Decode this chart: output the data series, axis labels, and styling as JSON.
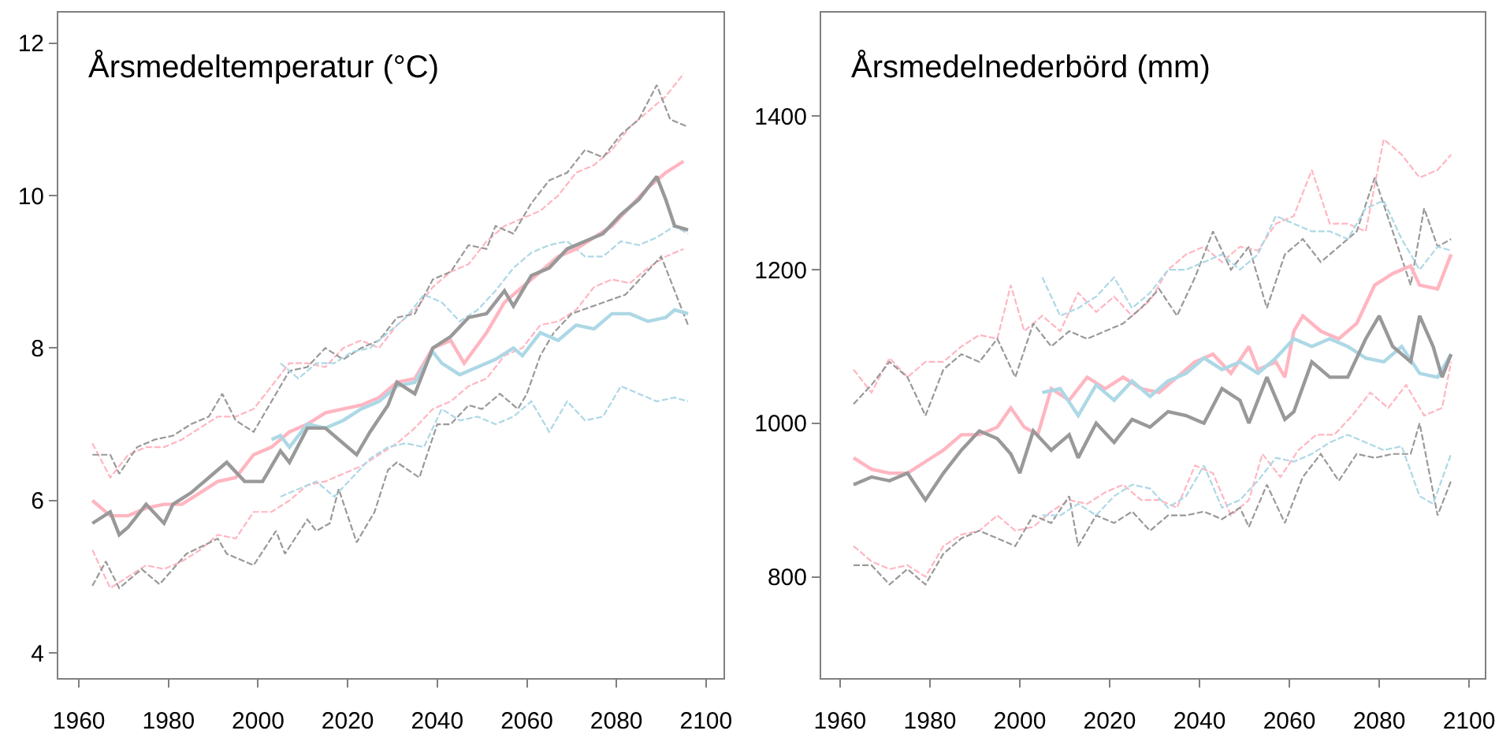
{
  "chart_data": [
    {
      "type": "line",
      "title": "Årsmedeltemperatur (°C)",
      "xlim": [
        1955.4,
        2103.9
      ],
      "ylim": [
        3.67,
        12.4
      ],
      "xticks": [
        1960,
        1980,
        2000,
        2020,
        2040,
        2060,
        2080,
        2100
      ],
      "yticks": [
        4,
        6,
        8,
        10,
        12
      ],
      "marker": "none",
      "series": [
        {
          "color": "#ffb6c1",
          "line_style": "dashed",
          "x": [
            1963,
            1967,
            1971,
            1975,
            1979,
            1983,
            1987,
            1991,
            1995,
            1999,
            2003,
            2007,
            2011,
            2015,
            2019,
            2023,
            2027,
            2031,
            2035,
            2039,
            2043,
            2047,
            2051,
            2055,
            2059,
            2063,
            2067,
            2071,
            2075,
            2079,
            2083,
            2087,
            2091,
            2095
          ],
          "values": [
            6.75,
            6.3,
            6.6,
            6.7,
            6.7,
            6.8,
            6.95,
            7.1,
            7.1,
            7.2,
            7.5,
            7.8,
            7.8,
            7.75,
            8.0,
            8.1,
            8.0,
            8.3,
            8.5,
            8.8,
            9.0,
            9.1,
            9.4,
            9.6,
            9.7,
            9.8,
            10.0,
            10.3,
            10.4,
            10.6,
            10.9,
            11.1,
            11.3,
            11.6
          ]
        },
        {
          "color": "#999999",
          "line_style": "dashed",
          "x": [
            1963,
            1967,
            1969,
            1973,
            1977,
            1981,
            1985,
            1989,
            1992,
            1995,
            1999,
            2003,
            2007,
            2011,
            2015,
            2019,
            2023,
            2027,
            2031,
            2035,
            2039,
            2043,
            2047,
            2051,
            2053,
            2057,
            2061,
            2065,
            2069,
            2073,
            2077,
            2081,
            2085,
            2089,
            2092,
            2096
          ],
          "values": [
            6.6,
            6.6,
            6.35,
            6.7,
            6.8,
            6.85,
            7.0,
            7.1,
            7.4,
            7.05,
            6.9,
            7.3,
            7.7,
            7.75,
            8.0,
            7.85,
            8.0,
            8.1,
            8.4,
            8.45,
            8.9,
            9.0,
            9.35,
            9.3,
            9.6,
            9.5,
            9.9,
            10.2,
            10.3,
            10.6,
            10.5,
            10.8,
            11.0,
            11.45,
            11.0,
            10.9
          ]
        },
        {
          "color": "#add8e6",
          "line_style": "dashed",
          "x": [
            2005,
            2009,
            2013,
            2017,
            2021,
            2025,
            2029,
            2033,
            2037,
            2041,
            2045,
            2049,
            2053,
            2057,
            2061,
            2065,
            2069,
            2073,
            2077,
            2081,
            2085,
            2089,
            2093,
            2096
          ],
          "values": [
            7.8,
            7.6,
            7.8,
            7.8,
            7.95,
            8.0,
            8.2,
            8.4,
            8.7,
            8.6,
            8.35,
            8.5,
            8.75,
            9.05,
            9.25,
            9.35,
            9.4,
            9.2,
            9.2,
            9.4,
            9.35,
            9.45,
            9.6,
            9.5
          ]
        },
        {
          "color": "#ffb6c1",
          "line_style": "dashed",
          "x": [
            1963,
            1967,
            1971,
            1975,
            1979,
            1983,
            1987,
            1991,
            1995,
            1999,
            2003,
            2007,
            2011,
            2015,
            2019,
            2023,
            2027,
            2031,
            2035,
            2039,
            2043,
            2047,
            2051,
            2055,
            2059,
            2063,
            2067,
            2071,
            2075,
            2079,
            2083,
            2087,
            2091,
            2095
          ],
          "values": [
            5.35,
            4.85,
            5.0,
            5.15,
            5.1,
            5.2,
            5.35,
            5.55,
            5.5,
            5.85,
            5.85,
            6.0,
            6.2,
            6.25,
            6.35,
            6.45,
            6.6,
            6.75,
            6.95,
            7.2,
            7.3,
            7.5,
            7.6,
            7.9,
            8.0,
            8.3,
            8.35,
            8.5,
            8.8,
            8.9,
            8.85,
            9.05,
            9.2,
            9.3
          ]
        },
        {
          "color": "#999999",
          "line_style": "dashed",
          "x": [
            1963,
            1966,
            1969,
            1974,
            1978,
            1984,
            1991,
            1993,
            1999,
            2004,
            2006,
            2011,
            2013,
            2016,
            2018,
            2022,
            2026,
            2029,
            2031,
            2036,
            2040,
            2043,
            2047,
            2050,
            2054,
            2058,
            2060,
            2063,
            2066,
            2070,
            2082,
            2090,
            2096
          ],
          "values": [
            4.88,
            5.2,
            4.85,
            5.1,
            4.9,
            5.3,
            5.5,
            5.3,
            5.15,
            5.6,
            5.3,
            5.75,
            5.6,
            5.7,
            6.15,
            5.45,
            5.85,
            6.4,
            6.5,
            6.3,
            7.0,
            7.0,
            7.25,
            7.2,
            7.4,
            7.2,
            7.4,
            7.9,
            8.2,
            8.45,
            8.7,
            9.2,
            8.3
          ]
        },
        {
          "color": "#add8e6",
          "line_style": "dashed",
          "x": [
            2005,
            2009,
            2013,
            2017,
            2021,
            2025,
            2029,
            2033,
            2037,
            2041,
            2045,
            2049,
            2053,
            2057,
            2061,
            2065,
            2069,
            2073,
            2077,
            2081,
            2085,
            2089,
            2093,
            2096
          ],
          "values": [
            6.05,
            6.15,
            6.25,
            6.05,
            6.3,
            6.55,
            6.7,
            6.75,
            6.7,
            7.2,
            7.05,
            7.1,
            7.0,
            7.1,
            7.3,
            6.9,
            7.3,
            7.05,
            7.1,
            7.5,
            7.4,
            7.3,
            7.35,
            7.3
          ]
        },
        {
          "color": "#ffb6c1",
          "line_style": "solid",
          "x": [
            1963,
            1967,
            1971,
            1975,
            1979,
            1983,
            1987,
            1991,
            1995,
            1999,
            2003,
            2007,
            2011,
            2015,
            2019,
            2023,
            2027,
            2031,
            2035,
            2039,
            2043,
            2046,
            2051,
            2055,
            2059,
            2063,
            2067,
            2071,
            2075,
            2079,
            2083,
            2087,
            2091,
            2095
          ],
          "values": [
            6.0,
            5.8,
            5.8,
            5.9,
            5.95,
            5.95,
            6.1,
            6.25,
            6.3,
            6.6,
            6.7,
            6.9,
            7.0,
            7.15,
            7.2,
            7.25,
            7.35,
            7.55,
            7.6,
            8.0,
            8.1,
            7.8,
            8.2,
            8.6,
            8.8,
            9.0,
            9.2,
            9.3,
            9.45,
            9.6,
            9.85,
            10.1,
            10.3,
            10.45
          ]
        },
        {
          "color": "#add8e6",
          "line_style": "solid",
          "x": [
            2003,
            2005,
            2007,
            2011,
            2015,
            2019,
            2023,
            2027,
            2031,
            2035,
            2039,
            2041,
            2045,
            2049,
            2053,
            2057,
            2059,
            2063,
            2067,
            2071,
            2075,
            2079,
            2083,
            2087,
            2091,
            2093,
            2096
          ],
          "values": [
            6.8,
            6.85,
            6.7,
            7.0,
            6.95,
            7.05,
            7.2,
            7.3,
            7.5,
            7.55,
            7.95,
            7.8,
            7.65,
            7.75,
            7.85,
            8.0,
            7.9,
            8.2,
            8.1,
            8.3,
            8.25,
            8.45,
            8.45,
            8.35,
            8.4,
            8.5,
            8.45
          ]
        },
        {
          "color": "#999999",
          "line_style": "solid",
          "x": [
            1963,
            1967,
            1969,
            1971,
            1975,
            1979,
            1981,
            1985,
            1989,
            1993,
            1997,
            2001,
            2005,
            2007,
            2011,
            2015,
            2019,
            2022,
            2025,
            2029,
            2031,
            2035,
            2039,
            2043,
            2047,
            2051,
            2055,
            2057,
            2061,
            2065,
            2069,
            2073,
            2077,
            2081,
            2085,
            2089,
            2091,
            2093,
            2096
          ],
          "values": [
            5.7,
            5.85,
            5.55,
            5.65,
            5.95,
            5.7,
            5.95,
            6.1,
            6.3,
            6.5,
            6.25,
            6.25,
            6.65,
            6.5,
            6.95,
            6.95,
            6.75,
            6.6,
            6.9,
            7.25,
            7.55,
            7.4,
            8.0,
            8.15,
            8.4,
            8.45,
            8.75,
            8.55,
            8.95,
            9.05,
            9.3,
            9.4,
            9.5,
            9.75,
            9.95,
            10.25,
            9.95,
            9.6,
            9.55
          ]
        }
      ]
    },
    {
      "type": "line",
      "title": "Årsmedelnederbörd (mm)",
      "xlim": [
        1955.8,
        2103.5
      ],
      "ylim": [
        668,
        1535
      ],
      "xticks": [
        1960,
        1980,
        2000,
        2020,
        2040,
        2060,
        2080,
        2100
      ],
      "yticks": [
        800,
        1000,
        1200,
        1400
      ],
      "marker": "none",
      "series": [
        {
          "color": "#ffb6c1",
          "line_style": "dashed",
          "x": [
            1963,
            1967,
            1971,
            1975,
            1979,
            1983,
            1987,
            1991,
            1995,
            1998,
            2001,
            2005,
            2009,
            2013,
            2017,
            2021,
            2025,
            2029,
            2033,
            2037,
            2041,
            2045,
            2049,
            2053,
            2057,
            2061,
            2065,
            2069,
            2073,
            2077,
            2081,
            2085,
            2089,
            2093,
            2096
          ],
          "values": [
            1070,
            1040,
            1085,
            1060,
            1080,
            1080,
            1100,
            1115,
            1110,
            1180,
            1120,
            1140,
            1120,
            1170,
            1145,
            1165,
            1140,
            1160,
            1200,
            1220,
            1230,
            1210,
            1230,
            1225,
            1260,
            1270,
            1330,
            1260,
            1260,
            1250,
            1370,
            1350,
            1320,
            1330,
            1350
          ]
        },
        {
          "color": "#999999",
          "line_style": "dashed",
          "x": [
            1963,
            1967,
            1971,
            1975,
            1979,
            1983,
            1987,
            1991,
            1995,
            1999,
            2003,
            2007,
            2011,
            2015,
            2019,
            2023,
            2027,
            2031,
            2035,
            2039,
            2043,
            2047,
            2051,
            2055,
            2059,
            2063,
            2067,
            2071,
            2075,
            2079,
            2083,
            2087,
            2090,
            2093,
            2096
          ],
          "values": [
            1025,
            1050,
            1080,
            1060,
            1010,
            1070,
            1090,
            1080,
            1110,
            1060,
            1130,
            1100,
            1120,
            1110,
            1120,
            1130,
            1150,
            1175,
            1140,
            1190,
            1250,
            1200,
            1230,
            1150,
            1220,
            1240,
            1210,
            1230,
            1250,
            1320,
            1250,
            1180,
            1280,
            1230,
            1240
          ]
        },
        {
          "color": "#add8e6",
          "line_style": "dashed",
          "x": [
            2005,
            2009,
            2013,
            2017,
            2021,
            2025,
            2029,
            2033,
            2037,
            2041,
            2045,
            2049,
            2053,
            2057,
            2061,
            2065,
            2069,
            2073,
            2077,
            2081,
            2085,
            2089,
            2093,
            2096
          ],
          "values": [
            1190,
            1140,
            1150,
            1165,
            1190,
            1150,
            1170,
            1200,
            1200,
            1210,
            1220,
            1200,
            1220,
            1270,
            1260,
            1250,
            1250,
            1240,
            1280,
            1290,
            1240,
            1200,
            1230,
            1225
          ]
        },
        {
          "color": "#ffb6c1",
          "line_style": "dashed",
          "x": [
            1963,
            1967,
            1971,
            1975,
            1979,
            1983,
            1987,
            1991,
            1995,
            1999,
            2003,
            2007,
            2011,
            2015,
            2019,
            2023,
            2027,
            2031,
            2035,
            2039,
            2043,
            2047,
            2051,
            2054,
            2058,
            2062,
            2066,
            2070,
            2074,
            2078,
            2082,
            2086,
            2090,
            2094,
            2096
          ],
          "values": [
            840,
            820,
            810,
            815,
            800,
            840,
            855,
            860,
            880,
            860,
            865,
            885,
            900,
            895,
            910,
            920,
            900,
            900,
            890,
            945,
            935,
            880,
            900,
            960,
            930,
            965,
            985,
            985,
            1010,
            1040,
            1020,
            1050,
            1010,
            1020,
            1080
          ]
        },
        {
          "color": "#999999",
          "line_style": "dashed",
          "x": [
            1963,
            1967,
            1971,
            1975,
            1979,
            1983,
            1987,
            1991,
            1995,
            1999,
            2003,
            2007,
            2011,
            2013,
            2017,
            2021,
            2025,
            2029,
            2033,
            2037,
            2041,
            2045,
            2049,
            2051,
            2055,
            2059,
            2063,
            2067,
            2071,
            2075,
            2079,
            2083,
            2087,
            2089,
            2093,
            2096
          ],
          "values": [
            815,
            815,
            790,
            810,
            790,
            830,
            850,
            860,
            850,
            840,
            880,
            870,
            905,
            840,
            880,
            870,
            885,
            860,
            880,
            880,
            885,
            875,
            890,
            865,
            920,
            870,
            930,
            960,
            925,
            960,
            955,
            960,
            960,
            1000,
            880,
            925
          ]
        },
        {
          "color": "#add8e6",
          "line_style": "dashed",
          "x": [
            2005,
            2009,
            2013,
            2017,
            2021,
            2025,
            2029,
            2033,
            2037,
            2041,
            2045,
            2049,
            2053,
            2057,
            2061,
            2065,
            2069,
            2073,
            2077,
            2081,
            2085,
            2089,
            2092,
            2096
          ],
          "values": [
            880,
            880,
            895,
            880,
            905,
            920,
            915,
            890,
            905,
            945,
            890,
            900,
            925,
            955,
            950,
            960,
            975,
            985,
            975,
            965,
            970,
            905,
            895,
            960
          ]
        },
        {
          "color": "#ffb6c1",
          "line_style": "solid",
          "x": [
            1963,
            1967,
            1971,
            1975,
            1979,
            1983,
            1987,
            1991,
            1995,
            1998,
            2001,
            2004,
            2007,
            2011,
            2015,
            2019,
            2023,
            2027,
            2031,
            2035,
            2039,
            2043,
            2047,
            2051,
            2053,
            2057,
            2059,
            2061,
            2063,
            2067,
            2071,
            2075,
            2079,
            2083,
            2087,
            2089,
            2093,
            2096
          ],
          "values": [
            955,
            940,
            935,
            935,
            950,
            965,
            985,
            985,
            995,
            1020,
            995,
            985,
            1045,
            1030,
            1060,
            1045,
            1060,
            1045,
            1040,
            1060,
            1080,
            1090,
            1065,
            1100,
            1070,
            1080,
            1060,
            1120,
            1140,
            1120,
            1110,
            1130,
            1180,
            1195,
            1205,
            1180,
            1175,
            1220
          ]
        },
        {
          "color": "#add8e6",
          "line_style": "solid",
          "x": [
            2005,
            2009,
            2013,
            2017,
            2021,
            2025,
            2029,
            2033,
            2037,
            2041,
            2045,
            2049,
            2053,
            2057,
            2061,
            2065,
            2069,
            2073,
            2077,
            2081,
            2085,
            2089,
            2093,
            2096
          ],
          "values": [
            1040,
            1045,
            1010,
            1050,
            1030,
            1055,
            1035,
            1055,
            1065,
            1085,
            1070,
            1080,
            1065,
            1085,
            1110,
            1100,
            1110,
            1100,
            1085,
            1080,
            1100,
            1065,
            1060,
            1090
          ]
        },
        {
          "color": "#999999",
          "line_style": "solid",
          "x": [
            1963,
            1967,
            1971,
            1975,
            1979,
            1983,
            1987,
            1991,
            1995,
            1998,
            2000,
            2003,
            2007,
            2011,
            2013,
            2017,
            2021,
            2025,
            2029,
            2033,
            2037,
            2041,
            2045,
            2049,
            2051,
            2055,
            2059,
            2061,
            2065,
            2069,
            2073,
            2077,
            2080,
            2083,
            2087,
            2089,
            2092,
            2094,
            2096
          ],
          "values": [
            920,
            930,
            925,
            935,
            900,
            935,
            965,
            990,
            980,
            960,
            935,
            990,
            965,
            985,
            955,
            1000,
            975,
            1005,
            995,
            1015,
            1010,
            1000,
            1045,
            1030,
            1000,
            1060,
            1005,
            1015,
            1080,
            1060,
            1060,
            1110,
            1140,
            1100,
            1080,
            1140,
            1100,
            1060,
            1090
          ]
        }
      ]
    }
  ]
}
